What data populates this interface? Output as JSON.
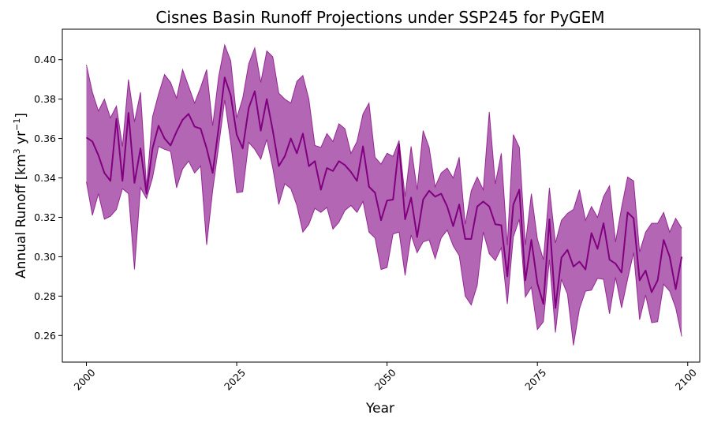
{
  "chart_data": {
    "type": "area",
    "title": "Cisnes Basin Runoff Projections under SSP245 for PyGEM",
    "xlabel": "Year",
    "ylabel": "Annual Runoff [km³ yr⁻¹]",
    "ylabel_parts": {
      "prefix": "Annual Runoff [km",
      "sup1": "3",
      "mid": " yr",
      "sup2": "−1",
      "suffix": "]"
    },
    "xlim": [
      1996,
      2102
    ],
    "ylim": [
      0.2465,
      0.4155
    ],
    "xticks": [
      2000,
      2025,
      2050,
      2075,
      2100
    ],
    "xtick_labels": [
      "2000",
      "2025",
      "2050",
      "2075",
      "2100"
    ],
    "yticks": [
      0.26,
      0.28,
      0.3,
      0.32,
      0.34,
      0.36,
      0.38,
      0.4
    ],
    "ytick_labels": [
      "0.26",
      "0.28",
      "0.30",
      "0.32",
      "0.34",
      "0.36",
      "0.38",
      "0.40"
    ],
    "grid": false,
    "colors": {
      "line": "#800080",
      "fill": "#800080",
      "fill_opacity": 0.6
    },
    "years_start": 2000,
    "series": [
      {
        "role": "mean",
        "values": [
          0.3605,
          0.3585,
          0.3515,
          0.3425,
          0.3385,
          0.37,
          0.3385,
          0.373,
          0.3375,
          0.355,
          0.332,
          0.355,
          0.3665,
          0.36,
          0.3565,
          0.3635,
          0.3695,
          0.3725,
          0.366,
          0.365,
          0.355,
          0.3425,
          0.3655,
          0.391,
          0.382,
          0.362,
          0.355,
          0.3755,
          0.384,
          0.364,
          0.38,
          0.364,
          0.346,
          0.351,
          0.36,
          0.3525,
          0.3625,
          0.346,
          0.3485,
          0.334,
          0.345,
          0.3435,
          0.3485,
          0.3465,
          0.343,
          0.3385,
          0.356,
          0.3355,
          0.3325,
          0.3185,
          0.3285,
          0.329,
          0.357,
          0.319,
          0.33,
          0.31,
          0.329,
          0.3335,
          0.3305,
          0.332,
          0.3255,
          0.3155,
          0.3265,
          0.309,
          0.309,
          0.3255,
          0.328,
          0.3255,
          0.3165,
          0.316,
          0.29,
          0.3265,
          0.334,
          0.288,
          0.3085,
          0.2865,
          0.276,
          0.319,
          0.274,
          0.2995,
          0.3035,
          0.295,
          0.2975,
          0.2935,
          0.312,
          0.304,
          0.317,
          0.2985,
          0.2965,
          0.292,
          0.3225,
          0.3195,
          0.288,
          0.293,
          0.282,
          0.288,
          0.3085,
          0.3,
          0.2835,
          0.3
        ]
      },
      {
        "role": "upper",
        "values": [
          0.3975,
          0.3835,
          0.374,
          0.38,
          0.3705,
          0.3765,
          0.356,
          0.39,
          0.3685,
          0.3835,
          0.3355,
          0.371,
          0.3825,
          0.3925,
          0.3885,
          0.3805,
          0.395,
          0.3865,
          0.378,
          0.386,
          0.395,
          0.3665,
          0.3915,
          0.4075,
          0.3995,
          0.3705,
          0.3805,
          0.398,
          0.406,
          0.3885,
          0.4045,
          0.4015,
          0.383,
          0.38,
          0.378,
          0.389,
          0.392,
          0.38,
          0.3565,
          0.3555,
          0.3625,
          0.3585,
          0.3675,
          0.365,
          0.3525,
          0.3585,
          0.3725,
          0.378,
          0.3505,
          0.347,
          0.3525,
          0.351,
          0.359,
          0.3305,
          0.356,
          0.334,
          0.364,
          0.3555,
          0.3355,
          0.3425,
          0.345,
          0.34,
          0.3505,
          0.3165,
          0.3335,
          0.3405,
          0.334,
          0.3735,
          0.337,
          0.3525,
          0.306,
          0.362,
          0.3555,
          0.306,
          0.332,
          0.309,
          0.2985,
          0.335,
          0.307,
          0.3185,
          0.322,
          0.324,
          0.334,
          0.3185,
          0.3255,
          0.32,
          0.3305,
          0.336,
          0.3075,
          0.325,
          0.3405,
          0.3385,
          0.3025,
          0.3125,
          0.317,
          0.317,
          0.3225,
          0.3125,
          0.3195,
          0.3145
        ]
      },
      {
        "role": "lower",
        "values": [
          0.338,
          0.321,
          0.332,
          0.319,
          0.3205,
          0.324,
          0.3345,
          0.332,
          0.2935,
          0.335,
          0.3295,
          0.34,
          0.356,
          0.3545,
          0.3535,
          0.335,
          0.3445,
          0.3485,
          0.3425,
          0.346,
          0.306,
          0.3335,
          0.356,
          0.3795,
          0.358,
          0.3325,
          0.333,
          0.358,
          0.3545,
          0.3495,
          0.3595,
          0.345,
          0.3265,
          0.337,
          0.3345,
          0.326,
          0.3125,
          0.3165,
          0.3245,
          0.3225,
          0.325,
          0.314,
          0.3175,
          0.3235,
          0.326,
          0.3225,
          0.328,
          0.3125,
          0.3095,
          0.2935,
          0.2945,
          0.3115,
          0.3125,
          0.2905,
          0.311,
          0.302,
          0.3075,
          0.3085,
          0.299,
          0.3095,
          0.3135,
          0.3055,
          0.3005,
          0.28,
          0.2755,
          0.2855,
          0.3125,
          0.3015,
          0.298,
          0.3045,
          0.276,
          0.31,
          0.319,
          0.2795,
          0.2845,
          0.263,
          0.267,
          0.2985,
          0.2615,
          0.2885,
          0.281,
          0.255,
          0.2735,
          0.2825,
          0.283,
          0.289,
          0.2885,
          0.271,
          0.2895,
          0.274,
          0.2885,
          0.302,
          0.268,
          0.2805,
          0.2665,
          0.267,
          0.286,
          0.2825,
          0.274,
          0.2595
        ]
      }
    ]
  }
}
